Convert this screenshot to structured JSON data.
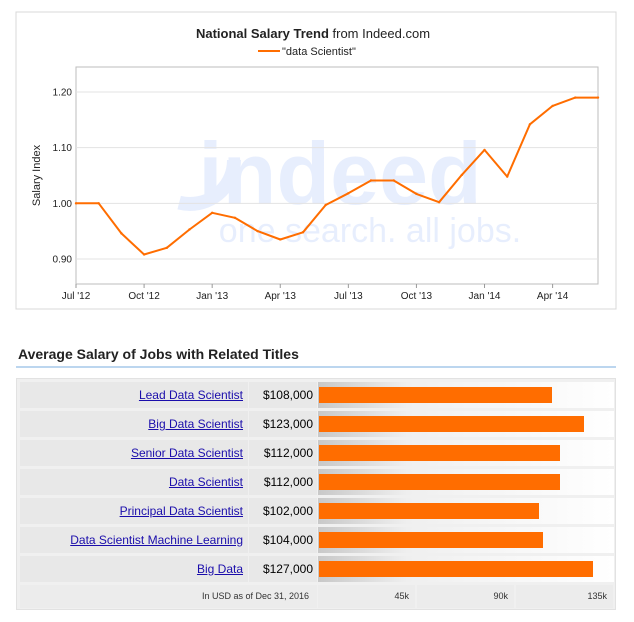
{
  "trend": {
    "title_bold": "National Salary Trend",
    "title_rest": " from Indeed.com",
    "watermark_logo": "indeed",
    "watermark_tagline": "one search. all jobs.",
    "line_color": "#ff6d00"
  },
  "chart_data": [
    {
      "type": "line",
      "title": "National Salary Trend from Indeed.com",
      "xlabel": "",
      "ylabel": "Salary Index",
      "ylim": [
        0.855,
        1.245
      ],
      "x_ticks": [
        "Jul '12",
        "Oct '12",
        "Jan '13",
        "Apr '13",
        "Jul '13",
        "Oct '13",
        "Jan '14",
        "Apr '14"
      ],
      "y_ticks": [
        0.9,
        1.0,
        1.1,
        1.2
      ],
      "grid": true,
      "legend": "top-center",
      "series": [
        {
          "name": "\"data Scientist\"",
          "x": [
            "2012-07",
            "2012-08",
            "2012-09",
            "2012-10",
            "2012-11",
            "2012-12",
            "2013-01",
            "2013-02",
            "2013-03",
            "2013-04",
            "2013-05",
            "2013-06",
            "2013-07",
            "2013-08",
            "2013-09",
            "2013-10",
            "2013-11",
            "2013-12",
            "2014-01",
            "2014-02",
            "2014-03",
            "2014-04",
            "2014-05",
            "2014-06"
          ],
          "values": [
            1.0,
            1.0,
            0.946,
            0.908,
            0.92,
            0.953,
            0.983,
            0.974,
            0.95,
            0.935,
            0.948,
            0.997,
            1.018,
            1.041,
            1.041,
            1.017,
            1.002,
            1.051,
            1.096,
            1.048,
            1.142,
            1.175,
            1.19,
            1.19
          ]
        }
      ]
    },
    {
      "type": "bar",
      "title": "Average Salary of Jobs with Related Titles",
      "orientation": "horizontal",
      "categories": [
        "Lead Data Scientist",
        "Big Data Scientist",
        "Senior Data Scientist",
        "Data Scientist",
        "Principal Data Scientist",
        "Data Scientist Machine Learning",
        "Big Data"
      ],
      "values": [
        108000,
        123000,
        112000,
        112000,
        102000,
        104000,
        127000
      ],
      "value_labels": [
        "$108,000",
        "$123,000",
        "$112,000",
        "$112,000",
        "$102,000",
        "$104,000",
        "$127,000"
      ],
      "xlim": [
        0,
        135000
      ],
      "x_ticks": [
        "45k",
        "90k",
        "135k"
      ],
      "note": "In USD as of Dec 31, 2016",
      "bar_color": "#ff6d00"
    }
  ]
}
